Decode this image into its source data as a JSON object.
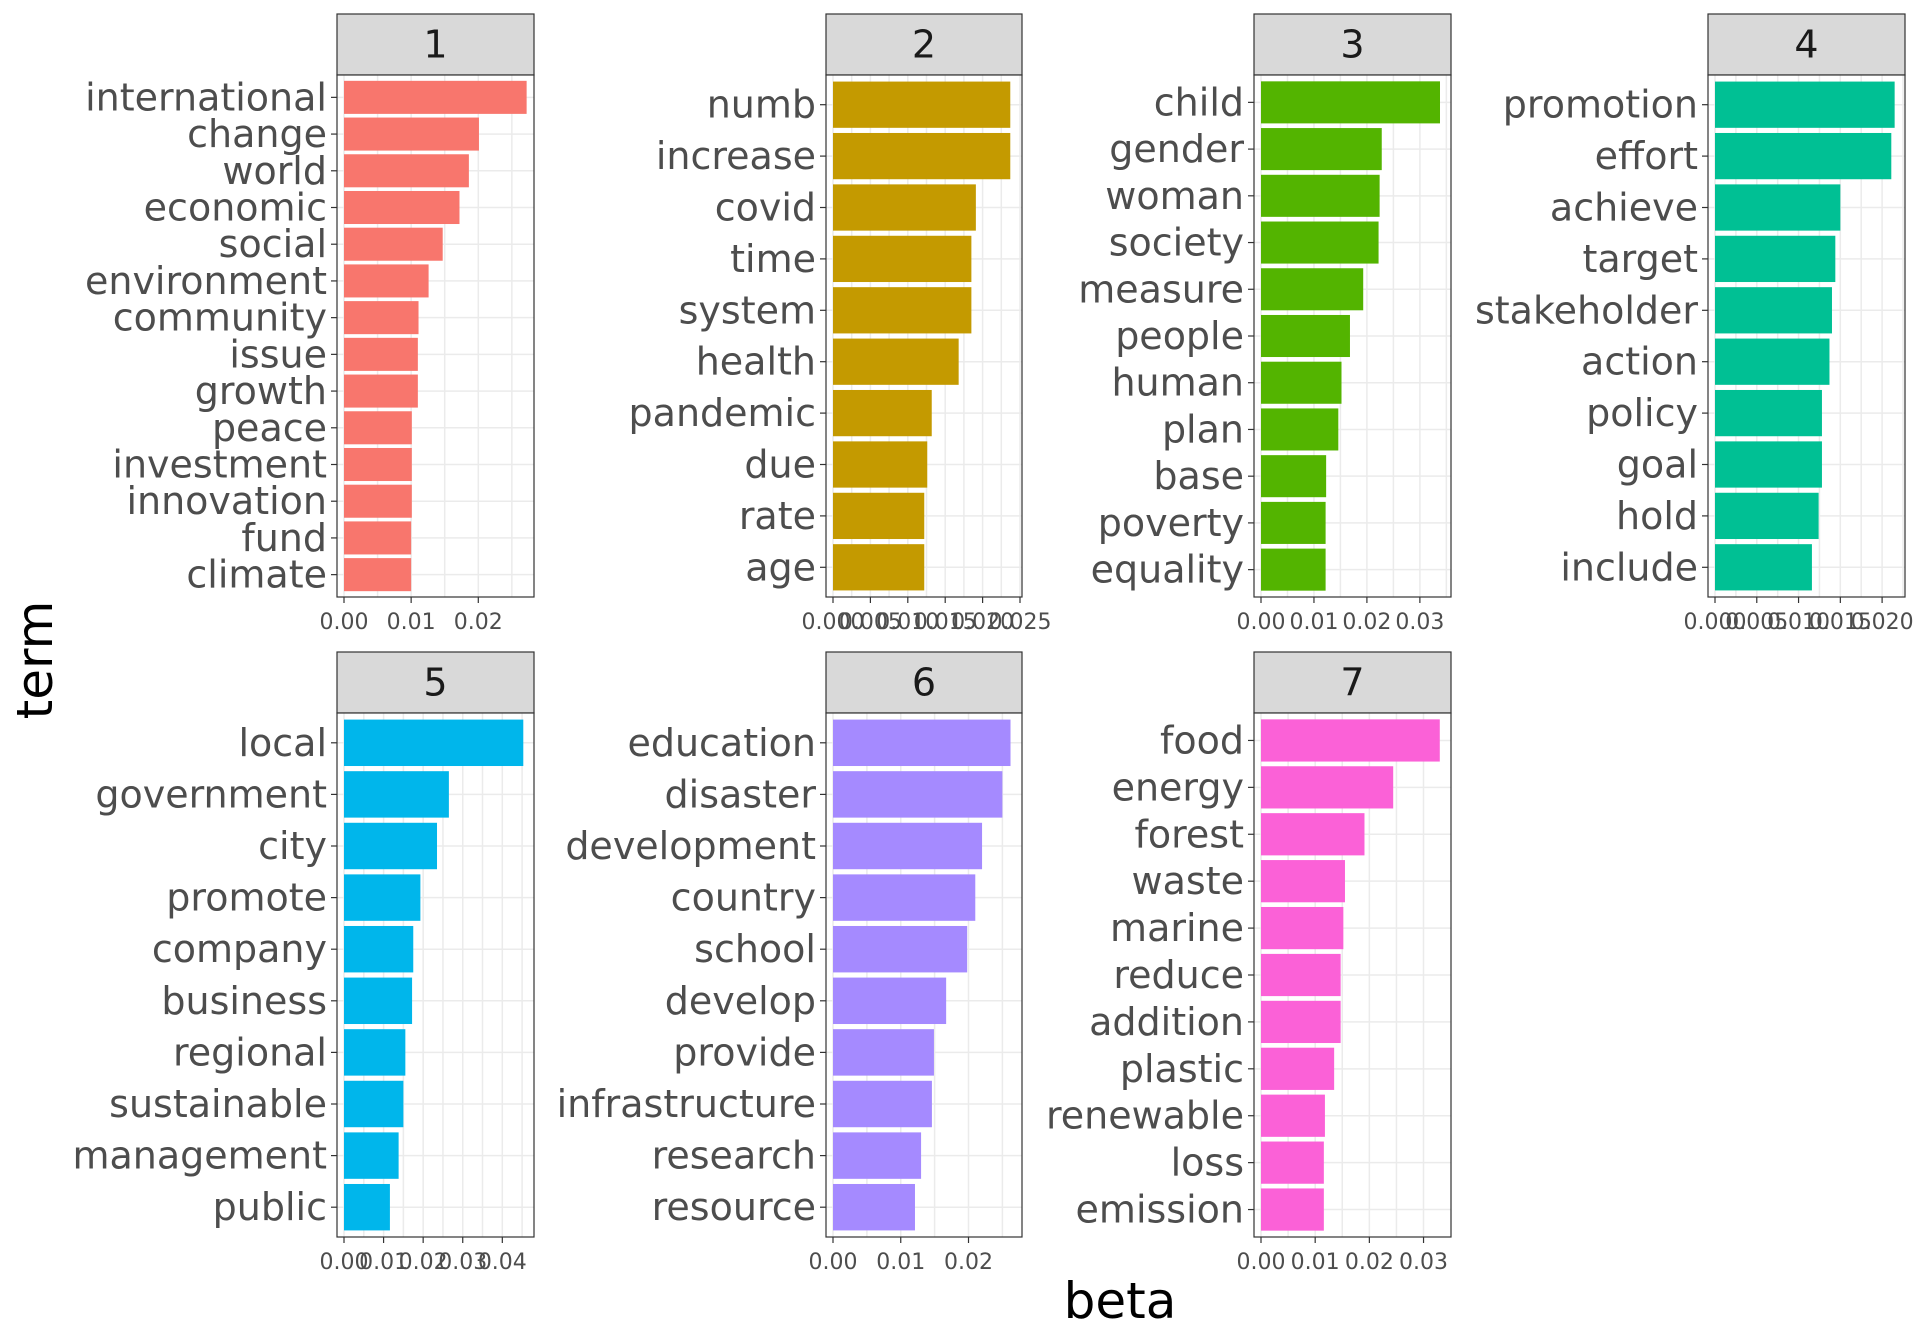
{
  "chart_data": {
    "type": "bar",
    "orientation": "horizontal",
    "layout": "facet-grid",
    "xlabel": "beta",
    "ylabel": "term",
    "grid": true,
    "legend": "none",
    "panels": [
      {
        "title": "1",
        "color": "#F8766D",
        "xlim": [
          0,
          0.028
        ],
        "ticks": [
          0,
          0.01,
          0.02
        ],
        "tick_labels": [
          "0.00",
          "0.01",
          "0.02"
        ],
        "categories": [
          "international",
          "change",
          "world",
          "economic",
          "social",
          "environment",
          "community",
          "issue",
          "growth",
          "peace",
          "investment",
          "innovation",
          "fund",
          "climate"
        ],
        "values": [
          0.0272,
          0.0201,
          0.0186,
          0.0172,
          0.0147,
          0.0126,
          0.0111,
          0.011,
          0.011,
          0.0101,
          0.0101,
          0.0101,
          0.01,
          0.01
        ]
      },
      {
        "title": "2",
        "color": "#C49A00",
        "xlim": [
          0,
          0.025
        ],
        "ticks": [
          0,
          0.005,
          0.01,
          0.015,
          0.02,
          0.025
        ],
        "tick_labels": [
          "0.000",
          "0.005",
          "0.010",
          "0.015",
          "0.020",
          "0.025"
        ],
        "categories": [
          "numb",
          "increase",
          "covid",
          "time",
          "system",
          "health",
          "pandemic",
          "due",
          "rate",
          "age"
        ],
        "values": [
          0.0237,
          0.0237,
          0.0191,
          0.0185,
          0.0185,
          0.0168,
          0.0132,
          0.0126,
          0.0122,
          0.0122
        ]
      },
      {
        "title": "3",
        "color": "#53B400",
        "xlim": [
          0,
          0.0355
        ],
        "ticks": [
          0,
          0.01,
          0.02,
          0.03
        ],
        "tick_labels": [
          "0.00",
          "0.01",
          "0.02",
          "0.03"
        ],
        "categories": [
          "child",
          "gender",
          "woman",
          "society",
          "measure",
          "people",
          "human",
          "plan",
          "base",
          "poverty",
          "equality"
        ],
        "values": [
          0.0338,
          0.0228,
          0.0224,
          0.0222,
          0.0193,
          0.0168,
          0.0152,
          0.0146,
          0.0123,
          0.0122,
          0.0122
        ]
      },
      {
        "title": "4",
        "color": "#00C094",
        "xlim": [
          0,
          0.0225
        ],
        "ticks": [
          0,
          0.005,
          0.01,
          0.015,
          0.02
        ],
        "tick_labels": [
          "0.000",
          "0.005",
          "0.010",
          "0.015",
          "0.020"
        ],
        "categories": [
          "promotion",
          "effort",
          "achieve",
          "target",
          "stakeholder",
          "action",
          "policy",
          "goal",
          "hold",
          "include"
        ],
        "values": [
          0.0215,
          0.0211,
          0.015,
          0.0144,
          0.014,
          0.0137,
          0.0128,
          0.0128,
          0.0124,
          0.0116
        ]
      },
      {
        "title": "5",
        "color": "#00B6EB",
        "xlim": [
          0,
          0.0475
        ],
        "ticks": [
          0,
          0.01,
          0.02,
          0.03,
          0.04
        ],
        "tick_labels": [
          "0.00",
          "0.01",
          "0.02",
          "0.03",
          "0.04"
        ],
        "categories": [
          "local",
          "government",
          "city",
          "promote",
          "company",
          "business",
          "regional",
          "sustainable",
          "management",
          "public"
        ],
        "values": [
          0.0453,
          0.0265,
          0.0235,
          0.0193,
          0.0175,
          0.0172,
          0.0155,
          0.015,
          0.0138,
          0.0116
        ]
      },
      {
        "title": "6",
        "color": "#A58AFF",
        "xlim": [
          0,
          0.0276
        ],
        "ticks": [
          0,
          0.01,
          0.02
        ],
        "tick_labels": [
          "0.00",
          "0.01",
          "0.02"
        ],
        "categories": [
          "education",
          "disaster",
          "development",
          "country",
          "school",
          "develop",
          "provide",
          "infrastructure",
          "research",
          "resource"
        ],
        "values": [
          0.0262,
          0.025,
          0.022,
          0.021,
          0.0198,
          0.0167,
          0.0149,
          0.0146,
          0.013,
          0.0121
        ]
      },
      {
        "title": "7",
        "color": "#FB61D7",
        "xlim": [
          0,
          0.0347
        ],
        "ticks": [
          0,
          0.01,
          0.02,
          0.03
        ],
        "tick_labels": [
          "0.00",
          "0.01",
          "0.02",
          "0.03"
        ],
        "categories": [
          "food",
          "energy",
          "forest",
          "waste",
          "marine",
          "reduce",
          "addition",
          "plastic",
          "renewable",
          "loss",
          "emission"
        ],
        "values": [
          0.033,
          0.0244,
          0.0191,
          0.0155,
          0.0152,
          0.0147,
          0.0147,
          0.0135,
          0.0118,
          0.0116,
          0.0116
        ]
      }
    ]
  }
}
